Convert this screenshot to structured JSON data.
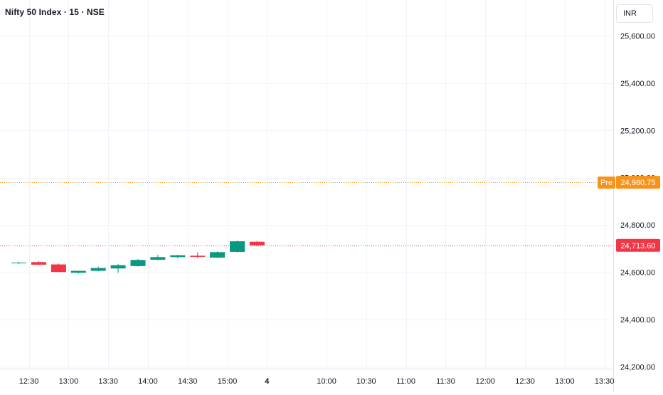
{
  "header": {
    "symbol_title": "Nifty 50 Index · 15 · NSE",
    "currency": "INR"
  },
  "chart_data": {
    "type": "candlestick",
    "title": "Nifty 50 Index · 15 · NSE",
    "price_axis": {
      "ticks": [
        {
          "value": 25600,
          "label": "25,600.00"
        },
        {
          "value": 25400,
          "label": "25,400.00"
        },
        {
          "value": 25200,
          "label": "25,200.00"
        },
        {
          "value": 25000,
          "label": "25,000.00"
        },
        {
          "value": 24800,
          "label": "24,800.00"
        },
        {
          "value": 24600,
          "label": "24,600.00"
        },
        {
          "value": 24400,
          "label": "24,400.00"
        },
        {
          "value": 24200,
          "label": "24,200.00"
        }
      ],
      "range": [
        24192,
        25752
      ]
    },
    "time_axis": {
      "ticks": [
        {
          "slot": -0.5,
          "label": "12:30"
        },
        {
          "slot": 1.5,
          "label": "13:00"
        },
        {
          "slot": 3.5,
          "label": "13:30"
        },
        {
          "slot": 5.5,
          "label": "14:00"
        },
        {
          "slot": 7.5,
          "label": "14:30"
        },
        {
          "slot": 9.5,
          "label": "15:00"
        },
        {
          "slot": 11.5,
          "label": "4",
          "bold": true
        },
        {
          "slot": 14.5,
          "label": "10:00"
        },
        {
          "slot": 16.5,
          "label": "10:30"
        },
        {
          "slot": 18.5,
          "label": "11:00"
        },
        {
          "slot": 20.5,
          "label": "11:30"
        },
        {
          "slot": 22.5,
          "label": "12:00"
        },
        {
          "slot": 24.5,
          "label": "12:30"
        },
        {
          "slot": 26.5,
          "label": "13:00"
        },
        {
          "slot": 28.5,
          "label": "13:30"
        }
      ],
      "slot_range": [
        -1.5,
        29.4
      ]
    },
    "candles": [
      {
        "slot": -1.0,
        "open": 24640,
        "high": 24644,
        "low": 24634,
        "close": 24641
      },
      {
        "slot": 0.0,
        "open": 24643,
        "high": 24648,
        "low": 24630,
        "close": 24632
      },
      {
        "slot": 1.0,
        "open": 24633,
        "high": 24636,
        "low": 24600,
        "close": 24601
      },
      {
        "slot": 2.0,
        "open": 24598,
        "high": 24606,
        "low": 24594,
        "close": 24606
      },
      {
        "slot": 3.0,
        "open": 24606,
        "high": 24624,
        "low": 24604,
        "close": 24618
      },
      {
        "slot": 4.0,
        "open": 24616,
        "high": 24635,
        "low": 24598,
        "close": 24630
      },
      {
        "slot": 5.0,
        "open": 24626,
        "high": 24656,
        "low": 24624,
        "close": 24652
      },
      {
        "slot": 6.0,
        "open": 24653,
        "high": 24674,
        "low": 24650,
        "close": 24664
      },
      {
        "slot": 7.0,
        "open": 24664,
        "high": 24674,
        "low": 24658,
        "close": 24672
      },
      {
        "slot": 8.0,
        "open": 24670,
        "high": 24684,
        "low": 24660,
        "close": 24665
      },
      {
        "slot": 9.0,
        "open": 24662,
        "high": 24688,
        "low": 24660,
        "close": 24685
      },
      {
        "slot": 10.0,
        "open": 24686,
        "high": 24734,
        "low": 24683,
        "close": 24731
      },
      {
        "slot": 11.0,
        "open": 24729,
        "high": 24733,
        "low": 24712,
        "close": 24714
      }
    ],
    "price_lines": [
      {
        "name": "Pre",
        "value": 24980.75,
        "label": "24,980.75",
        "color": "#f7931a",
        "style": "dotted"
      },
      {
        "name": "last",
        "value": 24713.6,
        "label": "24,713.60",
        "color": "#f23645",
        "style": "dotted"
      }
    ],
    "colors": {
      "up": "#089981",
      "down": "#f23645",
      "grid": "#f0f3fa",
      "text": "#131722"
    },
    "grid": true,
    "last_price": 24713.6
  }
}
